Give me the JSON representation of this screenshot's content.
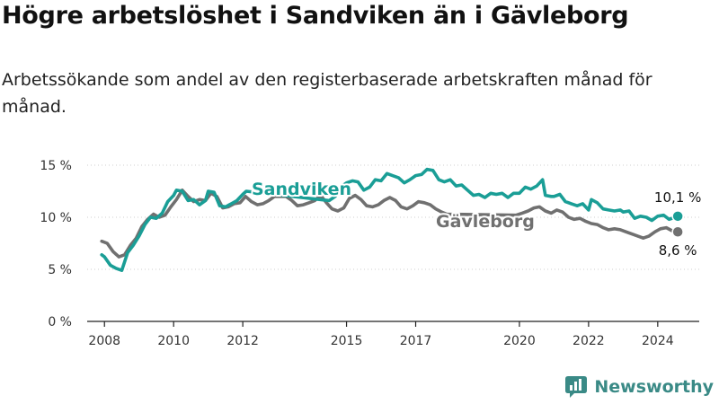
{
  "page": {
    "title": "Högre arbetslöshet i Sandviken än i Gävleborg",
    "subtitle": "Arbetssökande som andel av den registerbaserade arbetskraften månad för månad.",
    "brand": "Newsworthy",
    "brand_logo_icon": "newsworthy-bar-chart-icon"
  },
  "chart_data": {
    "type": "line",
    "title": "Högre arbetslöshet i Sandviken än i Gävleborg",
    "subtitle": "Arbetssökande som andel av den registerbaserade arbetskraften månad för månad.",
    "xlabel": "",
    "ylabel": "",
    "x_ticks": [
      "2008",
      "2010",
      "2012",
      "2015",
      "2017",
      "2020",
      "2022",
      "2024"
    ],
    "x_tick_values": [
      2008,
      2010,
      2012,
      2015,
      2017,
      2020,
      2022,
      2024
    ],
    "y_ticks": [
      "0 %",
      "5 %",
      "10 %",
      "15 %"
    ],
    "y_tick_values": [
      0,
      5,
      10,
      15
    ],
    "xlim": [
      2007.5,
      2025.2
    ],
    "ylim": [
      0,
      15
    ],
    "grid": "horizontal",
    "legend": "direct labels",
    "series": [
      {
        "name": "Sandviken",
        "color": "#1a9e96",
        "end_label": "10,1 %",
        "points": [
          [
            2007.92,
            6.4
          ],
          [
            2008.0,
            6.2
          ],
          [
            2008.17,
            5.4
          ],
          [
            2008.33,
            5.1
          ],
          [
            2008.5,
            4.9
          ],
          [
            2008.67,
            6.6
          ],
          [
            2008.83,
            7.3
          ],
          [
            2009.0,
            8.2
          ],
          [
            2009.17,
            9.3
          ],
          [
            2009.33,
            10.0
          ],
          [
            2009.5,
            9.9
          ],
          [
            2009.67,
            10.4
          ],
          [
            2009.83,
            11.5
          ],
          [
            2010.0,
            12.1
          ],
          [
            2010.08,
            12.6
          ],
          [
            2010.25,
            12.5
          ],
          [
            2010.42,
            11.6
          ],
          [
            2010.58,
            11.7
          ],
          [
            2010.75,
            11.2
          ],
          [
            2010.92,
            11.6
          ],
          [
            2011.0,
            12.5
          ],
          [
            2011.17,
            12.4
          ],
          [
            2011.33,
            11.1
          ],
          [
            2011.5,
            11.0
          ],
          [
            2011.67,
            11.3
          ],
          [
            2011.83,
            11.6
          ],
          [
            2012.0,
            12.2
          ],
          [
            2012.1,
            12.5
          ],
          [
            2014.5,
            11.6
          ],
          [
            2014.67,
            12.0
          ],
          [
            2014.83,
            12.9
          ],
          [
            2015.0,
            13.3
          ],
          [
            2015.17,
            13.5
          ],
          [
            2015.33,
            13.4
          ],
          [
            2015.5,
            12.6
          ],
          [
            2015.67,
            12.9
          ],
          [
            2015.83,
            13.6
          ],
          [
            2016.0,
            13.5
          ],
          [
            2016.17,
            14.2
          ],
          [
            2016.33,
            14.0
          ],
          [
            2016.5,
            13.8
          ],
          [
            2016.67,
            13.3
          ],
          [
            2016.83,
            13.6
          ],
          [
            2017.0,
            14.0
          ],
          [
            2017.17,
            14.1
          ],
          [
            2017.33,
            14.6
          ],
          [
            2017.5,
            14.5
          ],
          [
            2017.67,
            13.6
          ],
          [
            2017.83,
            13.4
          ],
          [
            2018.0,
            13.6
          ],
          [
            2018.17,
            13.0
          ],
          [
            2018.33,
            13.1
          ],
          [
            2018.5,
            12.6
          ],
          [
            2018.67,
            12.1
          ],
          [
            2018.83,
            12.2
          ],
          [
            2019.0,
            11.9
          ],
          [
            2019.17,
            12.3
          ],
          [
            2019.33,
            12.2
          ],
          [
            2019.5,
            12.3
          ],
          [
            2019.67,
            11.9
          ],
          [
            2019.83,
            12.3
          ],
          [
            2020.0,
            12.3
          ],
          [
            2020.17,
            12.9
          ],
          [
            2020.33,
            12.7
          ],
          [
            2020.5,
            13.0
          ],
          [
            2020.67,
            13.6
          ],
          [
            2020.75,
            12.1
          ],
          [
            2020.92,
            12.0
          ],
          [
            2021.0,
            12.0
          ],
          [
            2021.17,
            12.2
          ],
          [
            2021.33,
            11.5
          ],
          [
            2021.5,
            11.3
          ],
          [
            2021.67,
            11.1
          ],
          [
            2021.83,
            11.3
          ],
          [
            2022.0,
            10.7
          ],
          [
            2022.08,
            11.7
          ],
          [
            2022.25,
            11.4
          ],
          [
            2022.42,
            10.8
          ],
          [
            2022.58,
            10.7
          ],
          [
            2022.75,
            10.6
          ],
          [
            2022.92,
            10.7
          ],
          [
            2023.0,
            10.5
          ],
          [
            2023.17,
            10.6
          ],
          [
            2023.33,
            9.9
          ],
          [
            2023.5,
            10.1
          ],
          [
            2023.67,
            10.0
          ],
          [
            2023.83,
            9.7
          ],
          [
            2024.0,
            10.1
          ],
          [
            2024.17,
            10.2
          ],
          [
            2024.33,
            9.8
          ],
          [
            2024.5,
            10.0
          ],
          [
            2024.58,
            10.1
          ]
        ]
      },
      {
        "name": "Gävleborg",
        "color": "#707070",
        "end_label": "8,6 %",
        "points": [
          [
            2007.92,
            7.7
          ],
          [
            2008.08,
            7.5
          ],
          [
            2008.25,
            6.7
          ],
          [
            2008.42,
            6.2
          ],
          [
            2008.58,
            6.4
          ],
          [
            2008.75,
            7.3
          ],
          [
            2008.92,
            8.0
          ],
          [
            2009.08,
            9.1
          ],
          [
            2009.25,
            9.8
          ],
          [
            2009.42,
            10.3
          ],
          [
            2009.58,
            10.0
          ],
          [
            2009.75,
            10.2
          ],
          [
            2009.92,
            11.0
          ],
          [
            2010.08,
            11.7
          ],
          [
            2010.25,
            12.6
          ],
          [
            2010.42,
            12.0
          ],
          [
            2010.58,
            11.5
          ],
          [
            2010.75,
            11.7
          ],
          [
            2010.92,
            11.6
          ],
          [
            2011.08,
            12.3
          ],
          [
            2011.25,
            12.0
          ],
          [
            2011.42,
            10.9
          ],
          [
            2011.58,
            11.0
          ],
          [
            2011.75,
            11.3
          ],
          [
            2011.92,
            11.4
          ],
          [
            2012.08,
            12.0
          ],
          [
            2012.25,
            11.5
          ],
          [
            2012.42,
            11.2
          ],
          [
            2012.58,
            11.3
          ],
          [
            2012.75,
            11.6
          ],
          [
            2012.92,
            12.0
          ],
          [
            2013.25,
            12.0
          ],
          [
            2013.42,
            11.6
          ],
          [
            2013.58,
            11.1
          ],
          [
            2013.75,
            11.2
          ],
          [
            2013.92,
            11.4
          ],
          [
            2014.08,
            11.6
          ],
          [
            2014.25,
            12.1
          ],
          [
            2014.42,
            11.4
          ],
          [
            2014.58,
            10.8
          ],
          [
            2014.75,
            10.6
          ],
          [
            2014.92,
            10.9
          ],
          [
            2015.08,
            11.8
          ],
          [
            2015.25,
            12.1
          ],
          [
            2015.42,
            11.7
          ],
          [
            2015.58,
            11.1
          ],
          [
            2015.75,
            11.0
          ],
          [
            2015.92,
            11.2
          ],
          [
            2016.08,
            11.6
          ],
          [
            2016.25,
            11.9
          ],
          [
            2016.42,
            11.6
          ],
          [
            2016.58,
            11.0
          ],
          [
            2016.75,
            10.8
          ],
          [
            2016.92,
            11.1
          ],
          [
            2017.08,
            11.5
          ],
          [
            2017.25,
            11.4
          ],
          [
            2017.42,
            11.2
          ],
          [
            2017.58,
            10.8
          ],
          [
            2017.75,
            10.5
          ],
          [
            2017.9,
            10.3
          ],
          [
            2019.9,
            10.2
          ],
          [
            2020.08,
            10.4
          ],
          [
            2020.25,
            10.6
          ],
          [
            2020.42,
            10.9
          ],
          [
            2020.58,
            11.0
          ],
          [
            2020.75,
            10.6
          ],
          [
            2020.92,
            10.4
          ],
          [
            2021.08,
            10.7
          ],
          [
            2021.25,
            10.5
          ],
          [
            2021.42,
            10.0
          ],
          [
            2021.58,
            9.8
          ],
          [
            2021.75,
            9.9
          ],
          [
            2021.92,
            9.6
          ],
          [
            2022.08,
            9.4
          ],
          [
            2022.25,
            9.3
          ],
          [
            2022.42,
            9.0
          ],
          [
            2022.58,
            8.8
          ],
          [
            2022.75,
            8.9
          ],
          [
            2022.92,
            8.8
          ],
          [
            2023.08,
            8.6
          ],
          [
            2023.25,
            8.4
          ],
          [
            2023.42,
            8.2
          ],
          [
            2023.58,
            8.0
          ],
          [
            2023.75,
            8.2
          ],
          [
            2023.92,
            8.6
          ],
          [
            2024.08,
            8.9
          ],
          [
            2024.25,
            9.0
          ],
          [
            2024.42,
            8.7
          ],
          [
            2024.58,
            8.6
          ]
        ]
      }
    ],
    "labels": [
      {
        "text": "Sandviken",
        "series": "Sandviken"
      },
      {
        "text": "Gävleborg",
        "series": "Gävleborg"
      }
    ]
  }
}
